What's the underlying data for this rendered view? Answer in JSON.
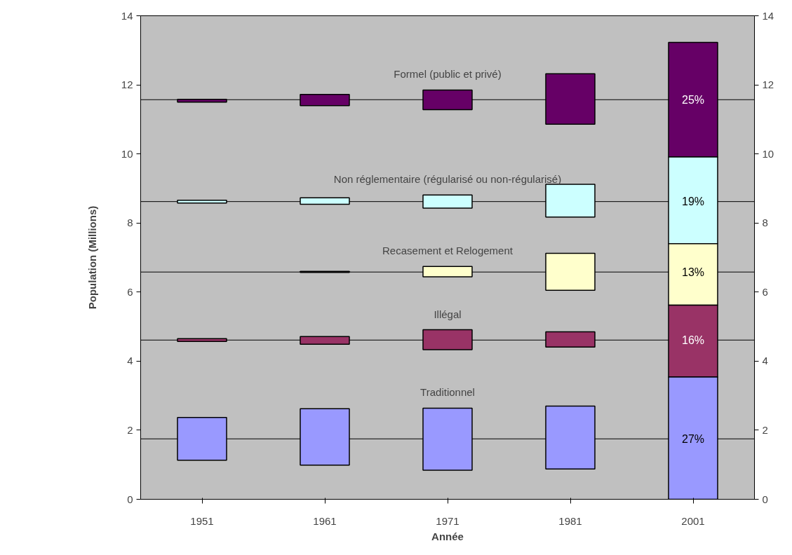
{
  "chart_data": {
    "type": "bar",
    "xlabel": "Année",
    "ylabel": "Population (Millions)",
    "categories": [
      "1951",
      "1961",
      "1971",
      "1981",
      "2001"
    ],
    "series": [
      {
        "name": "Formel (public et privé)",
        "color": "#660066",
        "base": [
          11.5,
          11.4,
          11.28,
          10.86,
          9.91
        ],
        "values": [
          0.08,
          0.32,
          0.57,
          1.46,
          3.32
        ]
      },
      {
        "name": "Non réglementaire (régularisé ou non-régularisé)",
        "color": "#ccffff",
        "base": [
          8.58,
          8.54,
          8.43,
          8.17,
          7.4
        ],
        "values": [
          0.08,
          0.19,
          0.38,
          0.95,
          2.51
        ]
      },
      {
        "name": "Recasement et Relogement",
        "color": "#ffffcc",
        "base": [
          null,
          6.57,
          6.44,
          6.05,
          5.62
        ],
        "values": [
          null,
          0.03,
          0.3,
          1.07,
          1.78
        ]
      },
      {
        "name": "Illégal",
        "color": "#993366",
        "base": [
          4.57,
          4.49,
          4.33,
          4.41,
          3.54
        ],
        "values": [
          0.08,
          0.22,
          0.58,
          0.44,
          2.08
        ]
      },
      {
        "name": "Traditionnel",
        "color": "#9999ff",
        "base": [
          1.13,
          0.99,
          0.84,
          0.88,
          0
        ],
        "values": [
          1.24,
          1.63,
          1.8,
          1.82,
          3.54
        ]
      }
    ],
    "ref_lines": [
      {
        "axis": "y",
        "value": 11.57
      },
      {
        "axis": "y",
        "value": 8.62
      },
      {
        "axis": "y",
        "value": 6.58
      },
      {
        "axis": "y",
        "value": 4.61
      },
      {
        "axis": "y",
        "value": 1.75
      }
    ],
    "annotations": [
      {
        "text": "25%",
        "x": "2001",
        "y": 11.57
      },
      {
        "text": "19%",
        "x": "2001",
        "y": 8.62
      },
      {
        "text": "13%",
        "x": "2001",
        "y": 6.58
      },
      {
        "text": "16%",
        "x": "2001",
        "y": 4.61
      },
      {
        "text": "27%",
        "x": "2001",
        "y": 1.75
      }
    ],
    "legend": false,
    "ylim": [
      0,
      14
    ],
    "yticks": [
      0,
      2,
      4,
      6,
      8,
      10,
      12,
      14
    ],
    "y2lim": [
      0,
      14
    ],
    "y2ticks": [
      0,
      2,
      4,
      6,
      8,
      10,
      12,
      14
    ],
    "grid": false
  }
}
